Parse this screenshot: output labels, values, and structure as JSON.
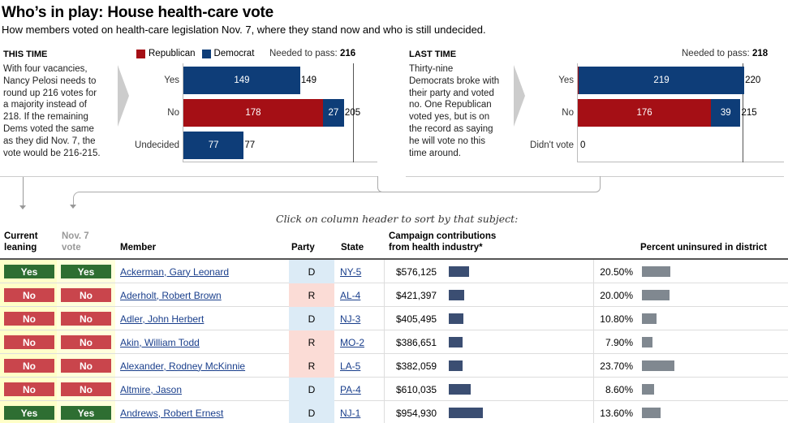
{
  "header": {
    "title": "Who’s in play: House health-care vote",
    "subtitle": "How members voted on health-care legislation Nov. 7, where they stand now and who is still undecided."
  },
  "legend": {
    "republican": "Republican",
    "democrat": "Democrat"
  },
  "colors": {
    "republican": "#a50f15",
    "democrat": "#0e3d78",
    "yes": "#2e6e32",
    "no": "#c9454c"
  },
  "this_time": {
    "label": "THIS TIME",
    "text_lines": [
      "With four vacancies,",
      "Nancy Pelosi needs to",
      "round up 216 votes for",
      "a majority instead of",
      "218. If the remaining",
      "Dems voted the same",
      "as they did Nov. 7, the",
      "vote would be 216-215."
    ],
    "needed_label": "Needed to pass:",
    "needed_value": "216",
    "rows": [
      {
        "label": "Yes",
        "rep": 0,
        "dem": 149,
        "rep_text": "0",
        "dem_text": "149",
        "total": "149"
      },
      {
        "label": "No",
        "rep": 178,
        "dem": 27,
        "rep_text": "178",
        "dem_text": "27",
        "total": "205"
      },
      {
        "label": "Undecided",
        "rep": 0,
        "dem": 77,
        "rep_text": "0",
        "dem_text": "77",
        "total": "77"
      }
    ]
  },
  "last_time": {
    "label": "LAST TIME",
    "text_lines": [
      "Thirty-nine",
      "Democrats broke with",
      "their party and voted",
      "no. One Republican",
      "voted yes, but is on",
      "the record as saying",
      "he will vote no this",
      "time around."
    ],
    "needed_label": "Needed to pass:",
    "needed_value": "218",
    "rows": [
      {
        "label": "Yes",
        "rep": 1,
        "dem": 219,
        "rep_text": "1",
        "dem_text": "219",
        "total": "220"
      },
      {
        "label": "No",
        "rep": 176,
        "dem": 39,
        "rep_text": "176",
        "dem_text": "39",
        "total": "215"
      },
      {
        "label": "Didn't vote",
        "rep": 0,
        "dem": 0,
        "rep_text": "0",
        "dem_text": "",
        "total": ""
      }
    ]
  },
  "sort_hint": "Click on column header to sort by that subject:",
  "table": {
    "headers": {
      "current_leaning": "Current\nleaning",
      "nov7": "Nov. 7\nvote",
      "member": "Member",
      "party": "Party",
      "state": "State",
      "contributions": "Campaign contributions\nfrom health industry*",
      "uninsured": "Percent uninsured in district"
    },
    "rows": [
      {
        "current": "Yes",
        "nov7": "Yes",
        "member": "Ackerman, Gary Leonard",
        "party": "D",
        "state": "NY-5",
        "contrib": "$576,125",
        "contrib_value": 576125,
        "uninsured": "20.50%",
        "uninsured_value": 20.5
      },
      {
        "current": "No",
        "nov7": "No",
        "member": "Aderholt, Robert Brown",
        "party": "R",
        "state": "AL-4",
        "contrib": "$421,397",
        "contrib_value": 421397,
        "uninsured": "20.00%",
        "uninsured_value": 20.0
      },
      {
        "current": "No",
        "nov7": "No",
        "member": "Adler, John Herbert",
        "party": "D",
        "state": "NJ-3",
        "contrib": "$405,495",
        "contrib_value": 405495,
        "uninsured": "10.80%",
        "uninsured_value": 10.8
      },
      {
        "current": "No",
        "nov7": "No",
        "member": "Akin, William Todd",
        "party": "R",
        "state": "MO-2",
        "contrib": "$386,651",
        "contrib_value": 386651,
        "uninsured": "7.90%",
        "uninsured_value": 7.9
      },
      {
        "current": "No",
        "nov7": "No",
        "member": "Alexander, Rodney McKinnie",
        "party": "R",
        "state": "LA-5",
        "contrib": "$382,059",
        "contrib_value": 382059,
        "uninsured": "23.70%",
        "uninsured_value": 23.7
      },
      {
        "current": "No",
        "nov7": "No",
        "member": "Altmire, Jason",
        "party": "D",
        "state": "PA-4",
        "contrib": "$610,035",
        "contrib_value": 610035,
        "uninsured": "8.60%",
        "uninsured_value": 8.6
      },
      {
        "current": "Yes",
        "nov7": "Yes",
        "member": "Andrews, Robert Ernest",
        "party": "D",
        "state": "NJ-1",
        "contrib": "$954,930",
        "contrib_value": 954930,
        "uninsured": "13.60%",
        "uninsured_value": 13.6
      }
    ]
  }
}
